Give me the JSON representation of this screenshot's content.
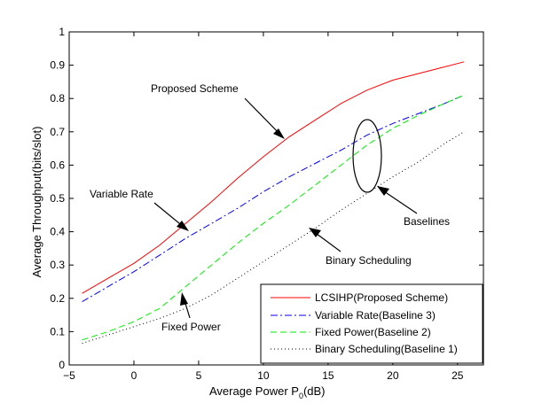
{
  "chart_data": {
    "type": "line",
    "title": "",
    "xlabel_main": "Average Power P",
    "xlabel_sub": "0",
    "xlabel_unit": "(dB)",
    "ylabel": "Average Throughput(bits/slot)",
    "xlim": [
      -5,
      27
    ],
    "ylim": [
      0,
      1
    ],
    "xticks": [
      -5,
      0,
      5,
      10,
      15,
      20,
      25
    ],
    "yticks": [
      0,
      0.1,
      0.2,
      0.3,
      0.4,
      0.5,
      0.6,
      0.7,
      0.8,
      0.9,
      1
    ],
    "grid": false,
    "legend_position": "bottom-right",
    "series": [
      {
        "name": "LCSIHP(Proposed Scheme)",
        "color": "#ff0000",
        "style": "solid",
        "x": [
          -4,
          -2,
          0,
          2,
          4,
          6,
          8,
          10,
          12,
          14,
          16,
          18,
          20,
          22,
          24,
          25.5
        ],
        "y": [
          0.215,
          0.26,
          0.305,
          0.36,
          0.425,
          0.49,
          0.56,
          0.625,
          0.685,
          0.735,
          0.785,
          0.825,
          0.855,
          0.875,
          0.895,
          0.91
        ]
      },
      {
        "name": "Variable Rate(Baseline 3)",
        "color": "#0000ff",
        "style": "dashdot",
        "x": [
          -4,
          -2,
          0,
          2,
          4,
          6,
          8,
          10,
          12,
          14,
          16,
          18,
          20,
          22,
          24,
          25.5
        ],
        "y": [
          0.19,
          0.235,
          0.28,
          0.33,
          0.38,
          0.425,
          0.47,
          0.52,
          0.565,
          0.605,
          0.645,
          0.69,
          0.725,
          0.755,
          0.785,
          0.81
        ]
      },
      {
        "name": "Fixed Power(Baseline 2)",
        "color": "#00ee00",
        "style": "dashed",
        "x": [
          -4,
          -2,
          0,
          2,
          4,
          6,
          8,
          10,
          12,
          14,
          16,
          18,
          20,
          22,
          24,
          25.5
        ],
        "y": [
          0.075,
          0.1,
          0.13,
          0.17,
          0.235,
          0.3,
          0.365,
          0.425,
          0.48,
          0.54,
          0.6,
          0.66,
          0.71,
          0.75,
          0.785,
          0.81
        ]
      },
      {
        "name": "Binary Scheduling(Baseline 1)",
        "color": "#000000",
        "style": "dotted",
        "x": [
          -4,
          -2,
          0,
          2,
          4,
          6,
          8,
          10,
          12,
          14,
          16,
          18,
          20,
          22,
          24,
          25.5
        ],
        "y": [
          0.065,
          0.09,
          0.115,
          0.14,
          0.17,
          0.21,
          0.26,
          0.31,
          0.36,
          0.41,
          0.465,
          0.515,
          0.565,
          0.61,
          0.665,
          0.7
        ]
      }
    ],
    "annotations": [
      {
        "label": "Proposed Scheme",
        "target": [
          11.5,
          0.685
        ]
      },
      {
        "label": "Variable Rate",
        "target": [
          6,
          0.42
        ]
      },
      {
        "label": "Baselines",
        "target": [
          18,
          0.55
        ]
      },
      {
        "label": "Binary Scheduling",
        "target": [
          12,
          0.41
        ]
      },
      {
        "label": "Fixed Power",
        "target": [
          4,
          0.23
        ]
      }
    ]
  }
}
